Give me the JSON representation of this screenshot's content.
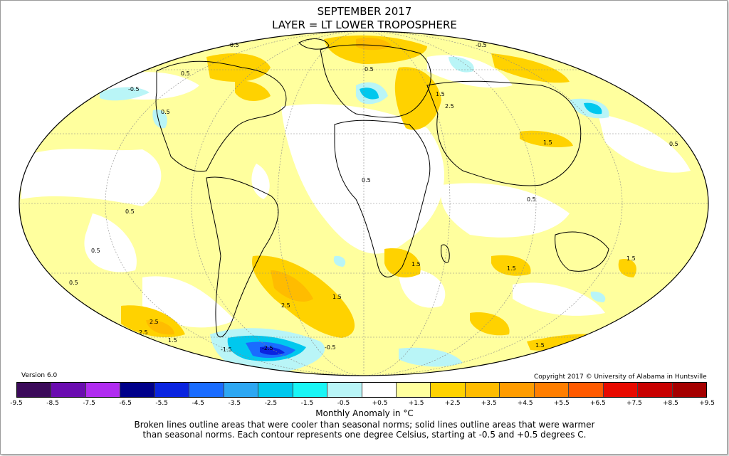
{
  "title": "SEPTEMBER 2017",
  "subtitle": "LAYER = LT LOWER TROPOSPHERE",
  "version": "Version 6.0",
  "copyright": "Copyright 2017 © University of Alabama in Huntsville",
  "colorbar": {
    "label": "Monthly Anomaly in °C",
    "ticks": [
      "-9.5",
      "-8.5",
      "-7.5",
      "-6.5",
      "-5.5",
      "-4.5",
      "-3.5",
      "-2.5",
      "-1.5",
      "-0.5",
      "+0.5",
      "+1.5",
      "+2.5",
      "+3.5",
      "+4.5",
      "+5.5",
      "+6.5",
      "+7.5",
      "+8.5",
      "+9.5"
    ],
    "colors": [
      "#3b0a5a",
      "#6a0cb0",
      "#b02cf0",
      "#00008a",
      "#0a24e0",
      "#1a6cff",
      "#2ea7f2",
      "#00c8ee",
      "#1af5f5",
      "#b9f5f7",
      "#ffffff",
      "#ffff9e",
      "#ffd200",
      "#ffbc00",
      "#ff9c00",
      "#ff7e00",
      "#ff5a00",
      "#e80a00",
      "#c80000",
      "#a50000"
    ]
  },
  "notes": {
    "line1": "Broken lines outline areas that were cooler than seasonal norms; solid lines outline areas that were warmer",
    "line2": "than seasonal norms. Each contour represents one degree Celsius, starting at -0.5 and +0.5 degrees C."
  },
  "contour_labels": [
    "-0.5",
    "0.5",
    "1.5",
    "2.5",
    "0.5",
    "1.5",
    "1.5",
    "1.5",
    "2.5",
    "-0.5",
    "0.5",
    "0.5",
    "0.5",
    "1.5",
    "1.5",
    "2.5",
    "2.5",
    "1.5",
    "-0.5",
    "-1.5",
    "-2.5",
    "1.5",
    "0.5",
    "0.5",
    "0.5",
    "-0.5",
    "0.5"
  ],
  "anomaly_colors": {
    "warm1": "#ffff9e",
    "warm2": "#ffd200",
    "warm3": "#ffbc00",
    "warm4": "#ff9c00",
    "cool1": "#b9f5f7",
    "cool2": "#1af5f5",
    "cool3": "#00c8ee",
    "cool4": "#2ea7f2",
    "cool5": "#1a6cff",
    "cool6": "#0a24e0"
  }
}
